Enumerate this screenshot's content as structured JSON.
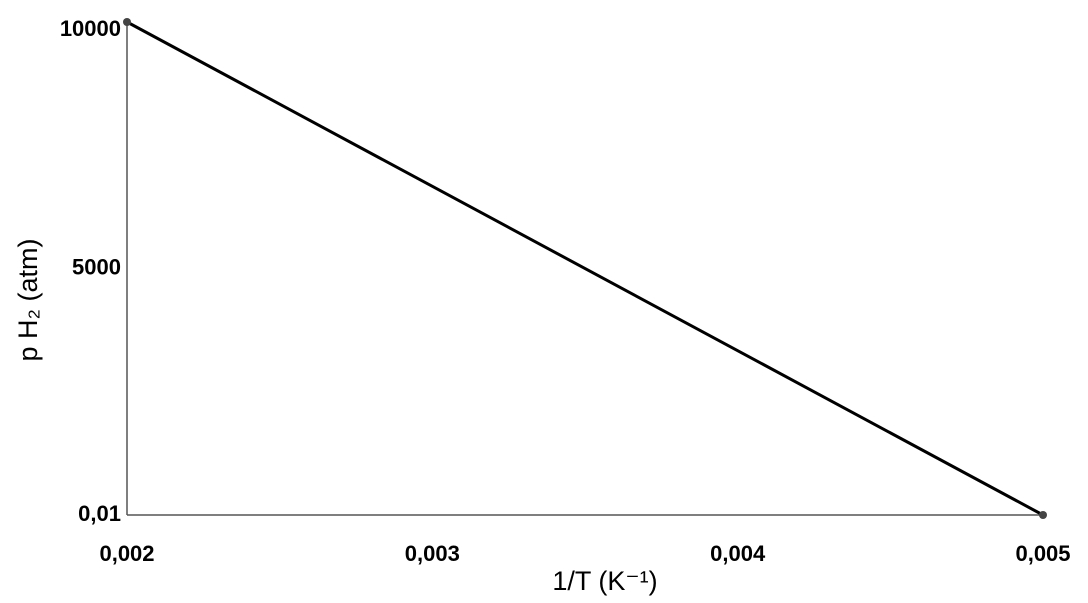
{
  "chart_data": {
    "type": "line",
    "x": [
      0.002,
      0.005
    ],
    "series": [
      {
        "color": "#000000",
        "values": [
          10000,
          0.01
        ]
      }
    ],
    "xlim": [
      0.002,
      0.005
    ],
    "xticks": [
      {
        "value": 0.002,
        "label": "0,002"
      },
      {
        "value": 0.003,
        "label": "0,003"
      },
      {
        "value": 0.004,
        "label": "0,004"
      },
      {
        "value": 0.005,
        "label": "0,005"
      }
    ],
    "ylim": [
      0.01,
      10000
    ],
    "yticks": [
      {
        "value": 0.01,
        "label": "0,01"
      },
      5000,
      10000
    ],
    "x_label": "1/T (K⁻¹)",
    "y_label": "p H₂ (atm)",
    "grid": false
  }
}
